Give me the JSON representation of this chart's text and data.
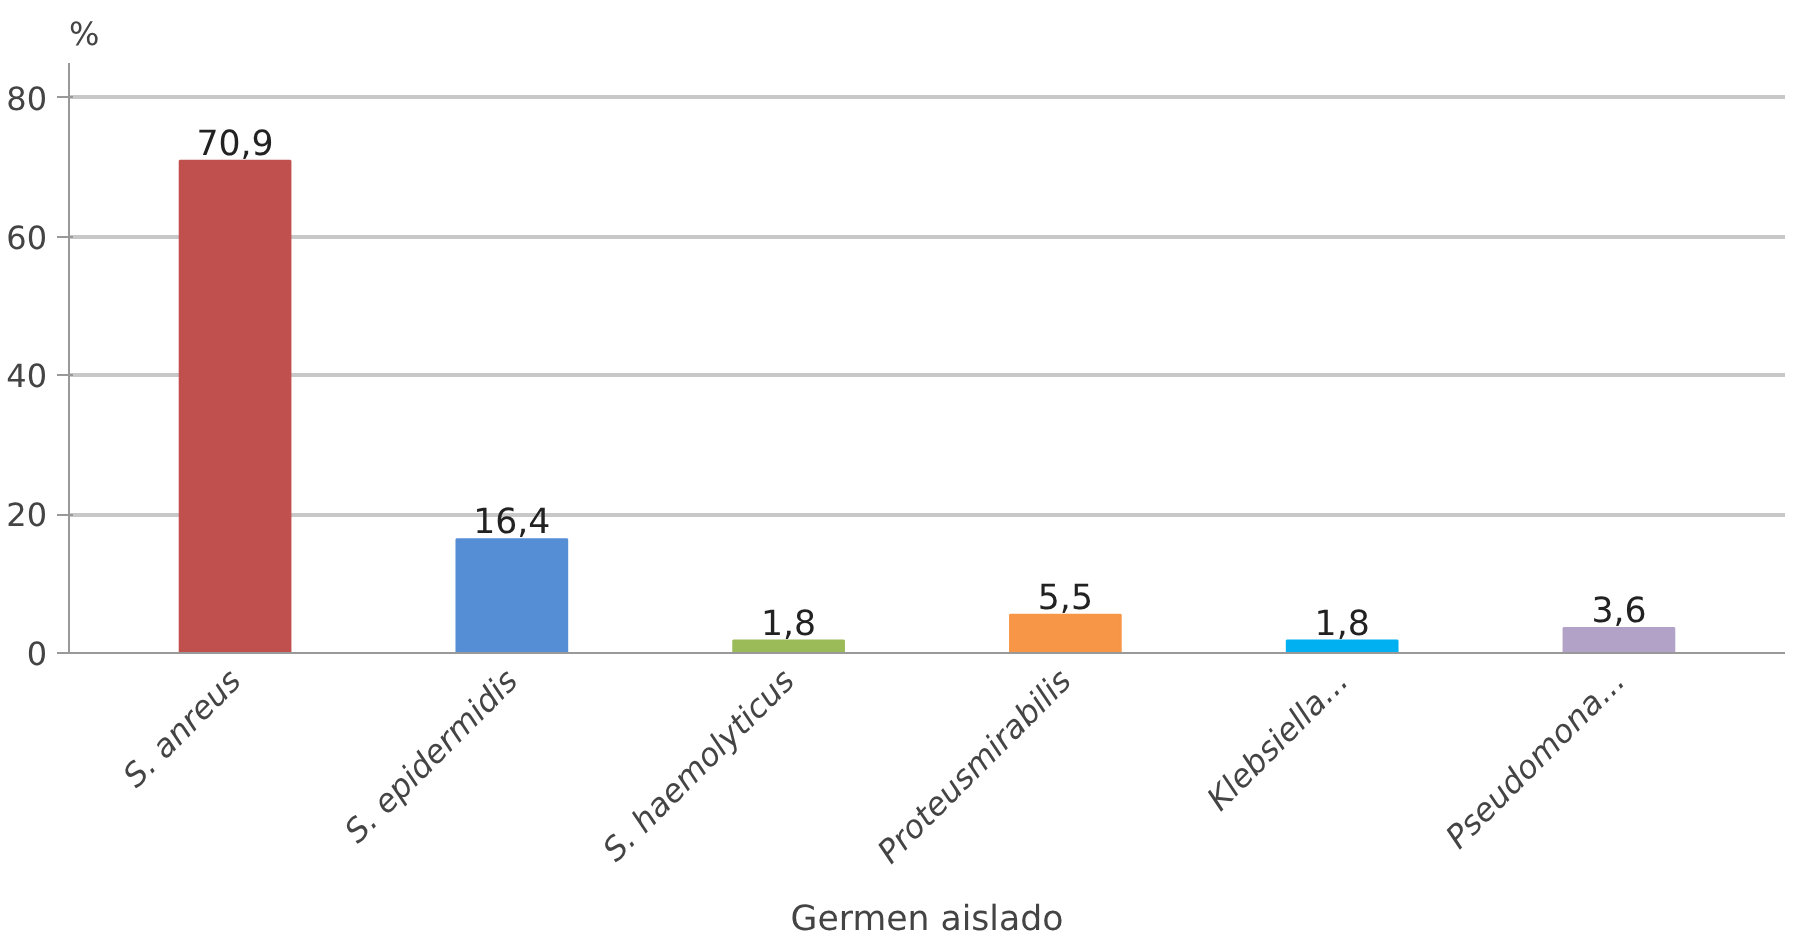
{
  "chart_data": {
    "type": "bar",
    "xlabel": "Germen aislado",
    "ylabel": "%",
    "categories": [
      "S. anreus",
      "S. epidermidis",
      "S. haemolyticus",
      "Proteusmirabilis",
      "Klebsiella...",
      "Pseudomona..."
    ],
    "values": [
      70.9,
      16.4,
      1.8,
      5.5,
      1.8,
      3.6
    ],
    "value_labels": [
      "70,9",
      "16,4",
      "1,8",
      "5,5",
      "1,8",
      "3,6"
    ],
    "colors": [
      "#c0504d",
      "#558ed5",
      "#9bbb59",
      "#f79646",
      "#00b0f0",
      "#b3a2c7"
    ],
    "ylim": [
      0,
      85
    ],
    "yticks": [
      0,
      20,
      40,
      60,
      80
    ],
    "grid": "y"
  }
}
